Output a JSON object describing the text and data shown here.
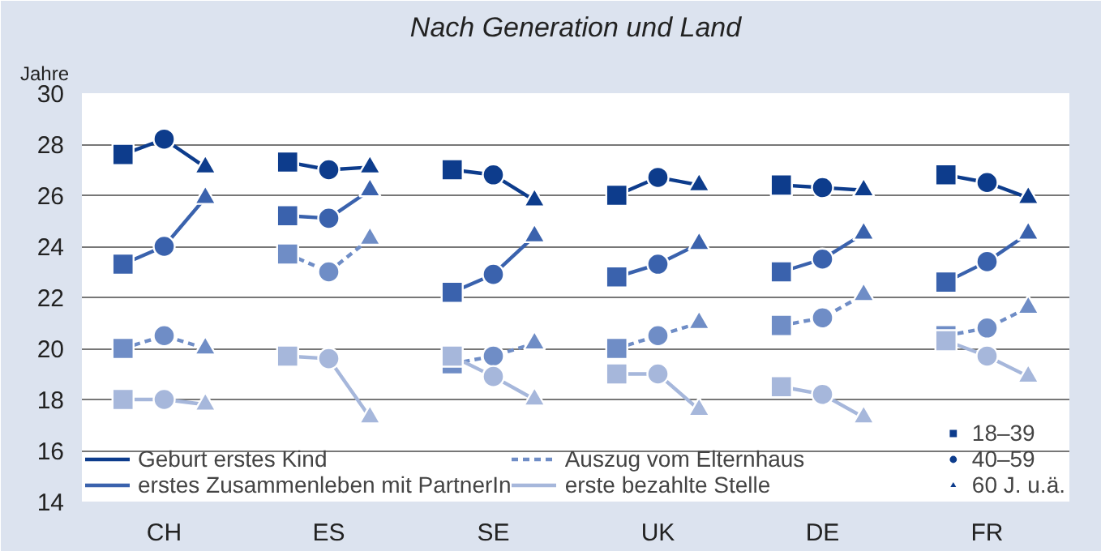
{
  "chart_data": {
    "type": "line",
    "title": "Nach Generation und Land",
    "ylabel": "Jahre",
    "categories": [
      null,
      "CH",
      null,
      null,
      null,
      "ES",
      null,
      null,
      null,
      "SE",
      null,
      null,
      null,
      "UK",
      null,
      null,
      null,
      "DE",
      null,
      null,
      null,
      "FR",
      null,
      null
    ],
    "ylim": [
      14,
      30
    ],
    "yticks": [
      14,
      16,
      18,
      20,
      22,
      24,
      26,
      28,
      30
    ],
    "grid": "y",
    "legend": "bottom",
    "series": [
      {
        "name": "Geburt erstes Kind",
        "line_style": "solid",
        "color": "#0d3c8c",
        "values": [
          27.6,
          28.2,
          27.1,
          null,
          27.3,
          27.0,
          27.1,
          null,
          27.0,
          26.8,
          25.8,
          null,
          26.0,
          26.7,
          26.4,
          null,
          26.4,
          26.3,
          26.2,
          null,
          26.8,
          26.5,
          25.9,
          null
        ]
      },
      {
        "name": "erstes Zusammenleben mit PartnerIn",
        "line_style": "solid",
        "color": "#3a62ad",
        "values": [
          23.3,
          24.0,
          25.9,
          null,
          25.2,
          25.1,
          26.2,
          null,
          22.2,
          22.9,
          24.4,
          null,
          22.8,
          23.3,
          24.1,
          null,
          23.0,
          23.5,
          24.5,
          null,
          22.6,
          23.4,
          24.5,
          null
        ]
      },
      {
        "name": "Auszug vom Elternhaus",
        "line_style": "dashed",
        "color": "#6f8dc6",
        "values": [
          20.0,
          20.5,
          20.0,
          null,
          23.7,
          23.0,
          24.3,
          null,
          19.4,
          19.7,
          20.2,
          null,
          20.0,
          20.5,
          21.0,
          null,
          20.9,
          21.2,
          22.1,
          null,
          20.5,
          20.8,
          21.6,
          null
        ]
      },
      {
        "name": "erste bezahlte Stelle",
        "line_style": "solid",
        "color": "#a6b7db",
        "values": [
          18.0,
          18.0,
          17.8,
          null,
          19.7,
          19.6,
          17.3,
          null,
          19.7,
          18.9,
          18.0,
          null,
          19.0,
          19.0,
          17.6,
          null,
          18.5,
          18.2,
          17.3,
          null,
          20.3,
          19.7,
          18.9,
          null
        ]
      },
      {
        "name": "18–39",
        "type": "scatter",
        "marker": "square",
        "color": "#0d3c8c",
        "values": [
          27.6,
          null,
          null,
          null,
          27.3,
          null,
          null,
          null,
          27.0,
          null,
          null,
          null,
          26.0,
          null,
          null,
          null,
          26.4,
          null,
          null,
          null,
          26.8,
          null,
          null,
          null
        ]
      },
      {
        "type": "scatter",
        "marker": "square",
        "color": "#3a62ad",
        "values": [
          23.3,
          null,
          null,
          null,
          25.2,
          null,
          null,
          null,
          22.2,
          null,
          null,
          null,
          22.8,
          null,
          null,
          null,
          23.0,
          null,
          null,
          null,
          22.6,
          null,
          null,
          null
        ]
      },
      {
        "type": "scatter",
        "marker": "square",
        "color": "#6f8dc6",
        "values": [
          20.0,
          null,
          null,
          null,
          23.7,
          null,
          null,
          null,
          19.4,
          null,
          null,
          null,
          20.0,
          null,
          null,
          null,
          20.9,
          null,
          null,
          null,
          20.5,
          null,
          null,
          null
        ]
      },
      {
        "type": "scatter",
        "marker": "square",
        "color": "#a6b7db",
        "values": [
          18.0,
          null,
          null,
          null,
          19.7,
          null,
          null,
          null,
          19.7,
          null,
          null,
          null,
          19.0,
          null,
          null,
          null,
          18.5,
          null,
          null,
          null,
          20.3,
          null,
          null,
          null
        ]
      },
      {
        "name": "40–59",
        "type": "scatter",
        "marker": "circle",
        "color": "#0d3c8c",
        "values": [
          null,
          28.2,
          null,
          null,
          null,
          27.0,
          null,
          null,
          null,
          26.8,
          null,
          null,
          null,
          26.7,
          null,
          null,
          null,
          26.3,
          null,
          null,
          null,
          26.5,
          null,
          null
        ]
      },
      {
        "type": "scatter",
        "marker": "circle",
        "color": "#3a62ad",
        "values": [
          null,
          24.0,
          null,
          null,
          null,
          25.1,
          null,
          null,
          null,
          22.9,
          null,
          null,
          null,
          23.3,
          null,
          null,
          null,
          23.5,
          null,
          null,
          null,
          23.4,
          null,
          null
        ]
      },
      {
        "type": "scatter",
        "marker": "circle",
        "color": "#6f8dc6",
        "values": [
          null,
          20.5,
          null,
          null,
          null,
          23.0,
          null,
          null,
          null,
          19.7,
          null,
          null,
          null,
          20.5,
          null,
          null,
          null,
          21.2,
          null,
          null,
          null,
          20.8,
          null,
          null
        ]
      },
      {
        "type": "scatter",
        "marker": "circle",
        "color": "#a6b7db",
        "values": [
          null,
          18.0,
          null,
          null,
          null,
          19.6,
          null,
          null,
          null,
          18.9,
          null,
          null,
          null,
          19.0,
          null,
          null,
          null,
          18.2,
          null,
          null,
          null,
          19.7,
          null,
          null
        ]
      },
      {
        "name": "60 J. u.ä.",
        "type": "scatter",
        "marker": "triangle",
        "color": "#0d3c8c",
        "values": [
          null,
          null,
          27.1,
          null,
          null,
          null,
          27.1,
          null,
          null,
          null,
          25.8,
          null,
          null,
          null,
          26.4,
          null,
          null,
          null,
          26.2,
          null,
          null,
          null,
          25.9,
          null
        ]
      },
      {
        "type": "scatter",
        "marker": "triangle",
        "color": "#3a62ad",
        "values": [
          null,
          null,
          25.9,
          null,
          null,
          null,
          26.2,
          null,
          null,
          null,
          24.4,
          null,
          null,
          null,
          24.1,
          null,
          null,
          null,
          24.5,
          null,
          null,
          null,
          24.5,
          null
        ]
      },
      {
        "type": "scatter",
        "marker": "triangle",
        "color": "#6f8dc6",
        "values": [
          null,
          null,
          20.0,
          null,
          null,
          null,
          24.3,
          null,
          null,
          null,
          20.2,
          null,
          null,
          null,
          21.0,
          null,
          null,
          null,
          22.1,
          null,
          null,
          null,
          21.6,
          null
        ]
      },
      {
        "type": "scatter",
        "marker": "triangle",
        "color": "#a6b7db",
        "values": [
          null,
          null,
          17.8,
          null,
          null,
          null,
          17.3,
          null,
          null,
          null,
          18.0,
          null,
          null,
          null,
          17.6,
          null,
          null,
          null,
          17.3,
          null,
          null,
          null,
          18.9,
          null
        ]
      }
    ]
  }
}
